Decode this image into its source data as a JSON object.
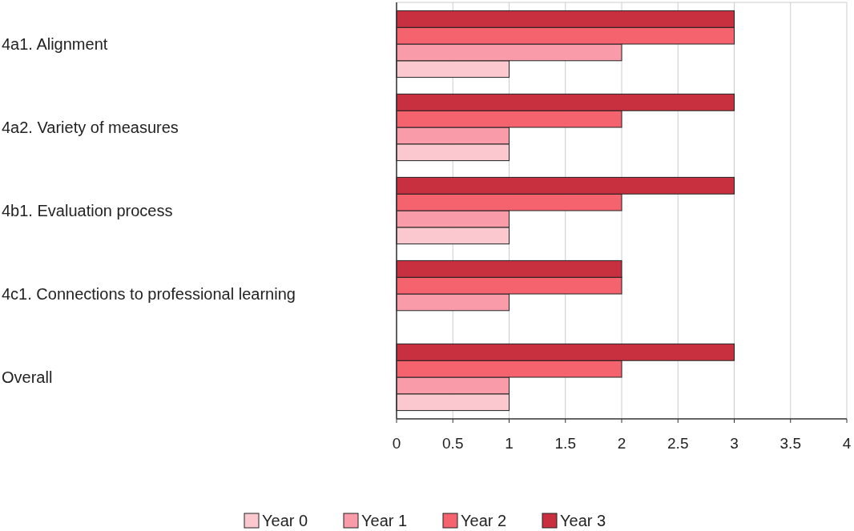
{
  "chart_data": {
    "type": "bar",
    "orientation": "horizontal",
    "categories": [
      "4a1. Alignment",
      "4a2. Variety of measures",
      "4b1. Evaluation process",
      "4c1. Connections to professional learning",
      "Overall"
    ],
    "series": [
      {
        "name": "Year 0",
        "color": "#fbc8d0",
        "values": [
          1,
          1,
          1,
          0,
          1
        ]
      },
      {
        "name": "Year 1",
        "color": "#f99ba9",
        "values": [
          2,
          1,
          1,
          1,
          1
        ]
      },
      {
        "name": "Year 2",
        "color": "#f5636f",
        "values": [
          3,
          2,
          2,
          2,
          2
        ]
      },
      {
        "name": "Year 3",
        "color": "#c9303f",
        "values": [
          3,
          3,
          3,
          2,
          3
        ]
      }
    ],
    "xlim": [
      0,
      4
    ],
    "xticks": [
      0,
      0.5,
      1,
      1.5,
      2,
      2.5,
      3,
      3.5,
      4
    ],
    "grid": "x",
    "legend": "bottom"
  }
}
